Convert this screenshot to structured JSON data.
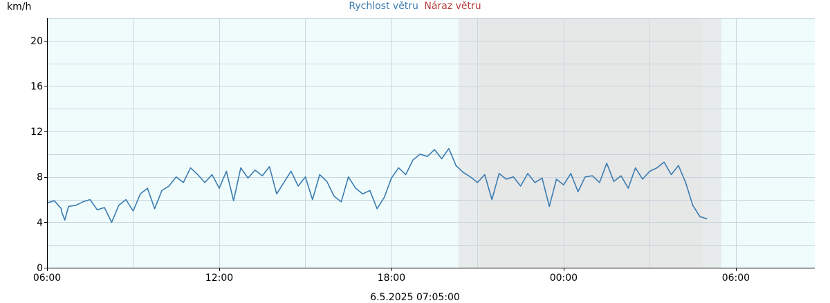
{
  "chart_data": {
    "type": "line",
    "ylabel": "km/h",
    "xlabel": "6.5.2025 07:05:00",
    "x_range": [
      "2025-05-05T06:00",
      "2025-05-06T08:45"
    ],
    "ylim": [
      0,
      22
    ],
    "y_ticks": [
      0,
      4,
      8,
      12,
      16,
      20
    ],
    "x_ticks": [
      {
        "t": "2025-05-05T06:00",
        "label": "06:00"
      },
      {
        "t": "2025-05-05T12:00",
        "label": "12:00"
      },
      {
        "t": "2025-05-05T18:00",
        "label": "18:00"
      },
      {
        "t": "2025-05-06T00:00",
        "label": "00:00"
      },
      {
        "t": "2025-05-06T06:00",
        "label": "06:00"
      }
    ],
    "night_shading": [
      {
        "from": "2025-05-05T20:20",
        "to": "2025-05-06T05:30",
        "color": "#e6e6e6"
      },
      {
        "from": "2025-05-05T21:05",
        "to": "2025-05-06T04:50",
        "color": "#e6e6e6"
      }
    ],
    "grid": true,
    "legend_position": "top-center",
    "series": [
      {
        "name": "Rychlost větru",
        "style": "line",
        "color": "#3a7bb0",
        "points": [
          [
            "2025-05-05T06:00",
            5.7
          ],
          [
            "2025-05-05T06:15",
            5.9
          ],
          [
            "2025-05-05T06:30",
            5.2
          ],
          [
            "2025-05-05T06:30",
            5.0
          ],
          [
            "2025-05-05T06:37",
            4.2
          ],
          [
            "2025-05-05T06:45",
            5.4
          ],
          [
            "2025-05-05T07:00",
            5.5
          ],
          [
            "2025-05-05T07:15",
            5.8
          ],
          [
            "2025-05-05T07:30",
            6.0
          ],
          [
            "2025-05-05T07:45",
            5.1
          ],
          [
            "2025-05-05T08:00",
            5.3
          ],
          [
            "2025-05-05T08:15",
            4.0
          ],
          [
            "2025-05-05T08:30",
            5.5
          ],
          [
            "2025-05-05T08:45",
            6.0
          ],
          [
            "2025-05-05T09:00",
            5.0
          ],
          [
            "2025-05-05T09:15",
            6.5
          ],
          [
            "2025-05-05T09:30",
            7.0
          ],
          [
            "2025-05-05T09:45",
            5.2
          ],
          [
            "2025-05-05T10:00",
            6.8
          ],
          [
            "2025-05-05T10:15",
            7.2
          ],
          [
            "2025-05-05T10:30",
            8.0
          ],
          [
            "2025-05-05T10:45",
            7.5
          ],
          [
            "2025-05-05T11:00",
            8.8
          ],
          [
            "2025-05-05T11:15",
            8.2
          ],
          [
            "2025-05-05T11:30",
            7.5
          ],
          [
            "2025-05-05T11:45",
            8.2
          ],
          [
            "2025-05-05T12:00",
            7.0
          ],
          [
            "2025-05-05T12:15",
            8.5
          ],
          [
            "2025-05-05T12:30",
            5.9
          ],
          [
            "2025-05-05T12:45",
            8.8
          ],
          [
            "2025-05-05T13:00",
            7.9
          ],
          [
            "2025-05-05T13:15",
            8.6
          ],
          [
            "2025-05-05T13:30",
            8.1
          ],
          [
            "2025-05-05T13:45",
            8.9
          ],
          [
            "2025-05-05T14:00",
            6.5
          ],
          [
            "2025-05-05T14:15",
            7.5
          ],
          [
            "2025-05-05T14:30",
            8.5
          ],
          [
            "2025-05-05T14:45",
            7.2
          ],
          [
            "2025-05-05T15:00",
            8.0
          ],
          [
            "2025-05-05T15:15",
            6.0
          ],
          [
            "2025-05-05T15:30",
            8.2
          ],
          [
            "2025-05-05T15:45",
            7.6
          ],
          [
            "2025-05-05T16:00",
            6.3
          ],
          [
            "2025-05-05T16:15",
            5.8
          ],
          [
            "2025-05-05T16:30",
            8.0
          ],
          [
            "2025-05-05T16:45",
            7.0
          ],
          [
            "2025-05-05T17:00",
            6.5
          ],
          [
            "2025-05-05T17:15",
            6.8
          ],
          [
            "2025-05-05T17:30",
            5.2
          ],
          [
            "2025-05-05T17:45",
            6.2
          ],
          [
            "2025-05-05T18:00",
            7.9
          ],
          [
            "2025-05-05T18:15",
            8.8
          ],
          [
            "2025-05-05T18:30",
            8.2
          ],
          [
            "2025-05-05T18:45",
            9.5
          ],
          [
            "2025-05-05T19:00",
            10.0
          ],
          [
            "2025-05-05T19:15",
            9.8
          ],
          [
            "2025-05-05T19:30",
            10.4
          ],
          [
            "2025-05-05T19:45",
            9.6
          ],
          [
            "2025-05-05T20:00",
            10.5
          ],
          [
            "2025-05-05T20:15",
            9.0
          ],
          [
            "2025-05-05T20:30",
            8.4
          ],
          [
            "2025-05-05T20:45",
            8.0
          ],
          [
            "2025-05-05T21:00",
            7.5
          ],
          [
            "2025-05-05T21:15",
            8.2
          ],
          [
            "2025-05-05T21:30",
            6.0
          ],
          [
            "2025-05-05T21:45",
            8.3
          ],
          [
            "2025-05-05T22:00",
            7.8
          ],
          [
            "2025-05-05T22:15",
            8.0
          ],
          [
            "2025-05-05T22:30",
            7.2
          ],
          [
            "2025-05-05T22:45",
            8.3
          ],
          [
            "2025-05-05T23:00",
            7.5
          ],
          [
            "2025-05-05T23:15",
            7.9
          ],
          [
            "2025-05-05T23:30",
            5.4
          ],
          [
            "2025-05-05T23:45",
            7.8
          ],
          [
            "2025-05-06T00:00",
            7.3
          ],
          [
            "2025-05-06T00:15",
            8.3
          ],
          [
            "2025-05-06T00:30",
            6.7
          ],
          [
            "2025-05-06T00:45",
            8.0
          ],
          [
            "2025-05-06T01:00",
            8.1
          ],
          [
            "2025-05-06T01:15",
            7.5
          ],
          [
            "2025-05-06T01:30",
            9.2
          ],
          [
            "2025-05-06T01:45",
            7.6
          ],
          [
            "2025-05-06T02:00",
            8.1
          ],
          [
            "2025-05-06T02:15",
            7.0
          ],
          [
            "2025-05-06T02:30",
            8.8
          ],
          [
            "2025-05-06T02:45",
            7.8
          ],
          [
            "2025-05-06T03:00",
            8.5
          ],
          [
            "2025-05-06T03:15",
            8.8
          ],
          [
            "2025-05-06T03:30",
            9.3
          ],
          [
            "2025-05-06T03:45",
            8.2
          ],
          [
            "2025-05-06T04:00",
            9.0
          ],
          [
            "2025-05-06T04:15",
            7.5
          ],
          [
            "2025-05-06T04:30",
            5.5
          ],
          [
            "2025-05-06T04:45",
            4.5
          ],
          [
            "2025-05-06T05:00",
            4.3
          ]
        ]
      },
      {
        "name": "Náraz větru",
        "style": "markers",
        "color": "#b83a3a",
        "points": []
      }
    ]
  }
}
